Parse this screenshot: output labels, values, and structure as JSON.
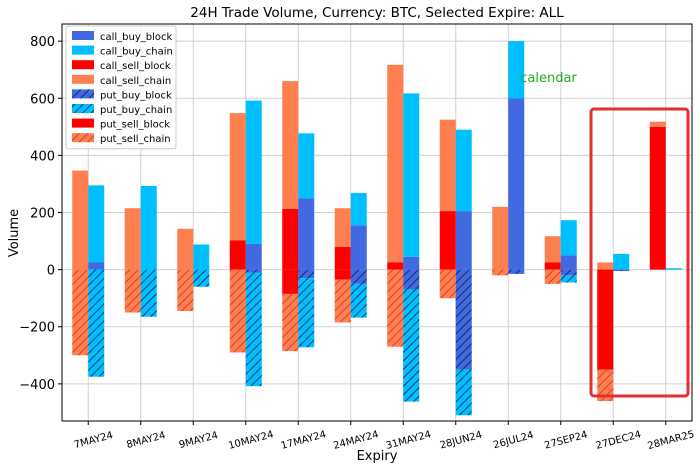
{
  "chart_data": {
    "type": "bar",
    "title": "24H Trade Volume, Currency: BTC, Selected Expire: ALL",
    "xlabel": "Expiry",
    "ylabel": "Volume",
    "ylim": [
      -530,
      860
    ],
    "yticks": [
      -400,
      -200,
      0,
      200,
      400,
      600,
      800
    ],
    "grid": true,
    "legend_position": "top-left",
    "categories": [
      "7MAY24",
      "8MAY24",
      "9MAY24",
      "10MAY24",
      "17MAY24",
      "24MAY24",
      "31MAY24",
      "28JUN24",
      "26JUL24",
      "27SEP24",
      "27DEC24",
      "28MAR25"
    ],
    "series": [
      {
        "name": "call_buy_block",
        "key": "call_buy_block",
        "group": "buy",
        "color": "#4169e1",
        "hatch": false,
        "values": [
          25,
          0,
          0,
          90,
          250,
          155,
          45,
          205,
          600,
          50,
          0,
          0
        ]
      },
      {
        "name": "call_buy_chain",
        "key": "call_buy_chain",
        "group": "buy",
        "color": "#00bfff",
        "hatch": false,
        "values": [
          270,
          293,
          88,
          502,
          227,
          113,
          572,
          285,
          200,
          123,
          55,
          5
        ]
      },
      {
        "name": "call_sell_block",
        "key": "call_sell_block",
        "group": "sell",
        "color": "#ff0000",
        "hatch": false,
        "values": [
          0,
          0,
          0,
          103,
          213,
          80,
          25,
          205,
          0,
          25,
          0,
          500
        ]
      },
      {
        "name": "call_sell_chain",
        "key": "call_sell_chain",
        "group": "sell",
        "color": "#ff7f50",
        "hatch": false,
        "values": [
          347,
          215,
          143,
          445,
          447,
          135,
          692,
          320,
          220,
          92,
          25,
          18
        ]
      },
      {
        "name": "put_buy_block",
        "key": "put_buy_block",
        "group": "buy",
        "color": "#4169e1",
        "hatch": true,
        "values": [
          0,
          0,
          0,
          -10,
          -30,
          -50,
          -70,
          -350,
          -15,
          -20,
          -5,
          0
        ]
      },
      {
        "name": "put_buy_chain",
        "key": "put_buy_chain",
        "group": "buy",
        "color": "#00bfff",
        "hatch": true,
        "values": [
          -375,
          -165,
          -60,
          -398,
          -242,
          -118,
          -392,
          -160,
          0,
          -25,
          0,
          0
        ]
      },
      {
        "name": "put_sell_block",
        "key": "put_sell_block",
        "group": "sell",
        "color": "#ff0000",
        "hatch": false,
        "values": [
          0,
          0,
          0,
          0,
          -85,
          -35,
          0,
          0,
          0,
          0,
          -350,
          0
        ]
      },
      {
        "name": "put_sell_chain",
        "key": "put_sell_chain",
        "group": "sell",
        "color": "#ff7f50",
        "hatch": true,
        "values": [
          -300,
          -150,
          -145,
          -290,
          -200,
          -150,
          -270,
          -100,
          -20,
          -50,
          -110,
          0
        ]
      }
    ],
    "annotations": [
      {
        "text": "calendar",
        "color": "#22aa22",
        "x_category": "26JUL24",
        "y": 675
      }
    ],
    "highlight": {
      "categories": [
        "27DEC24",
        "28MAR25"
      ],
      "color": "#e03030"
    }
  }
}
